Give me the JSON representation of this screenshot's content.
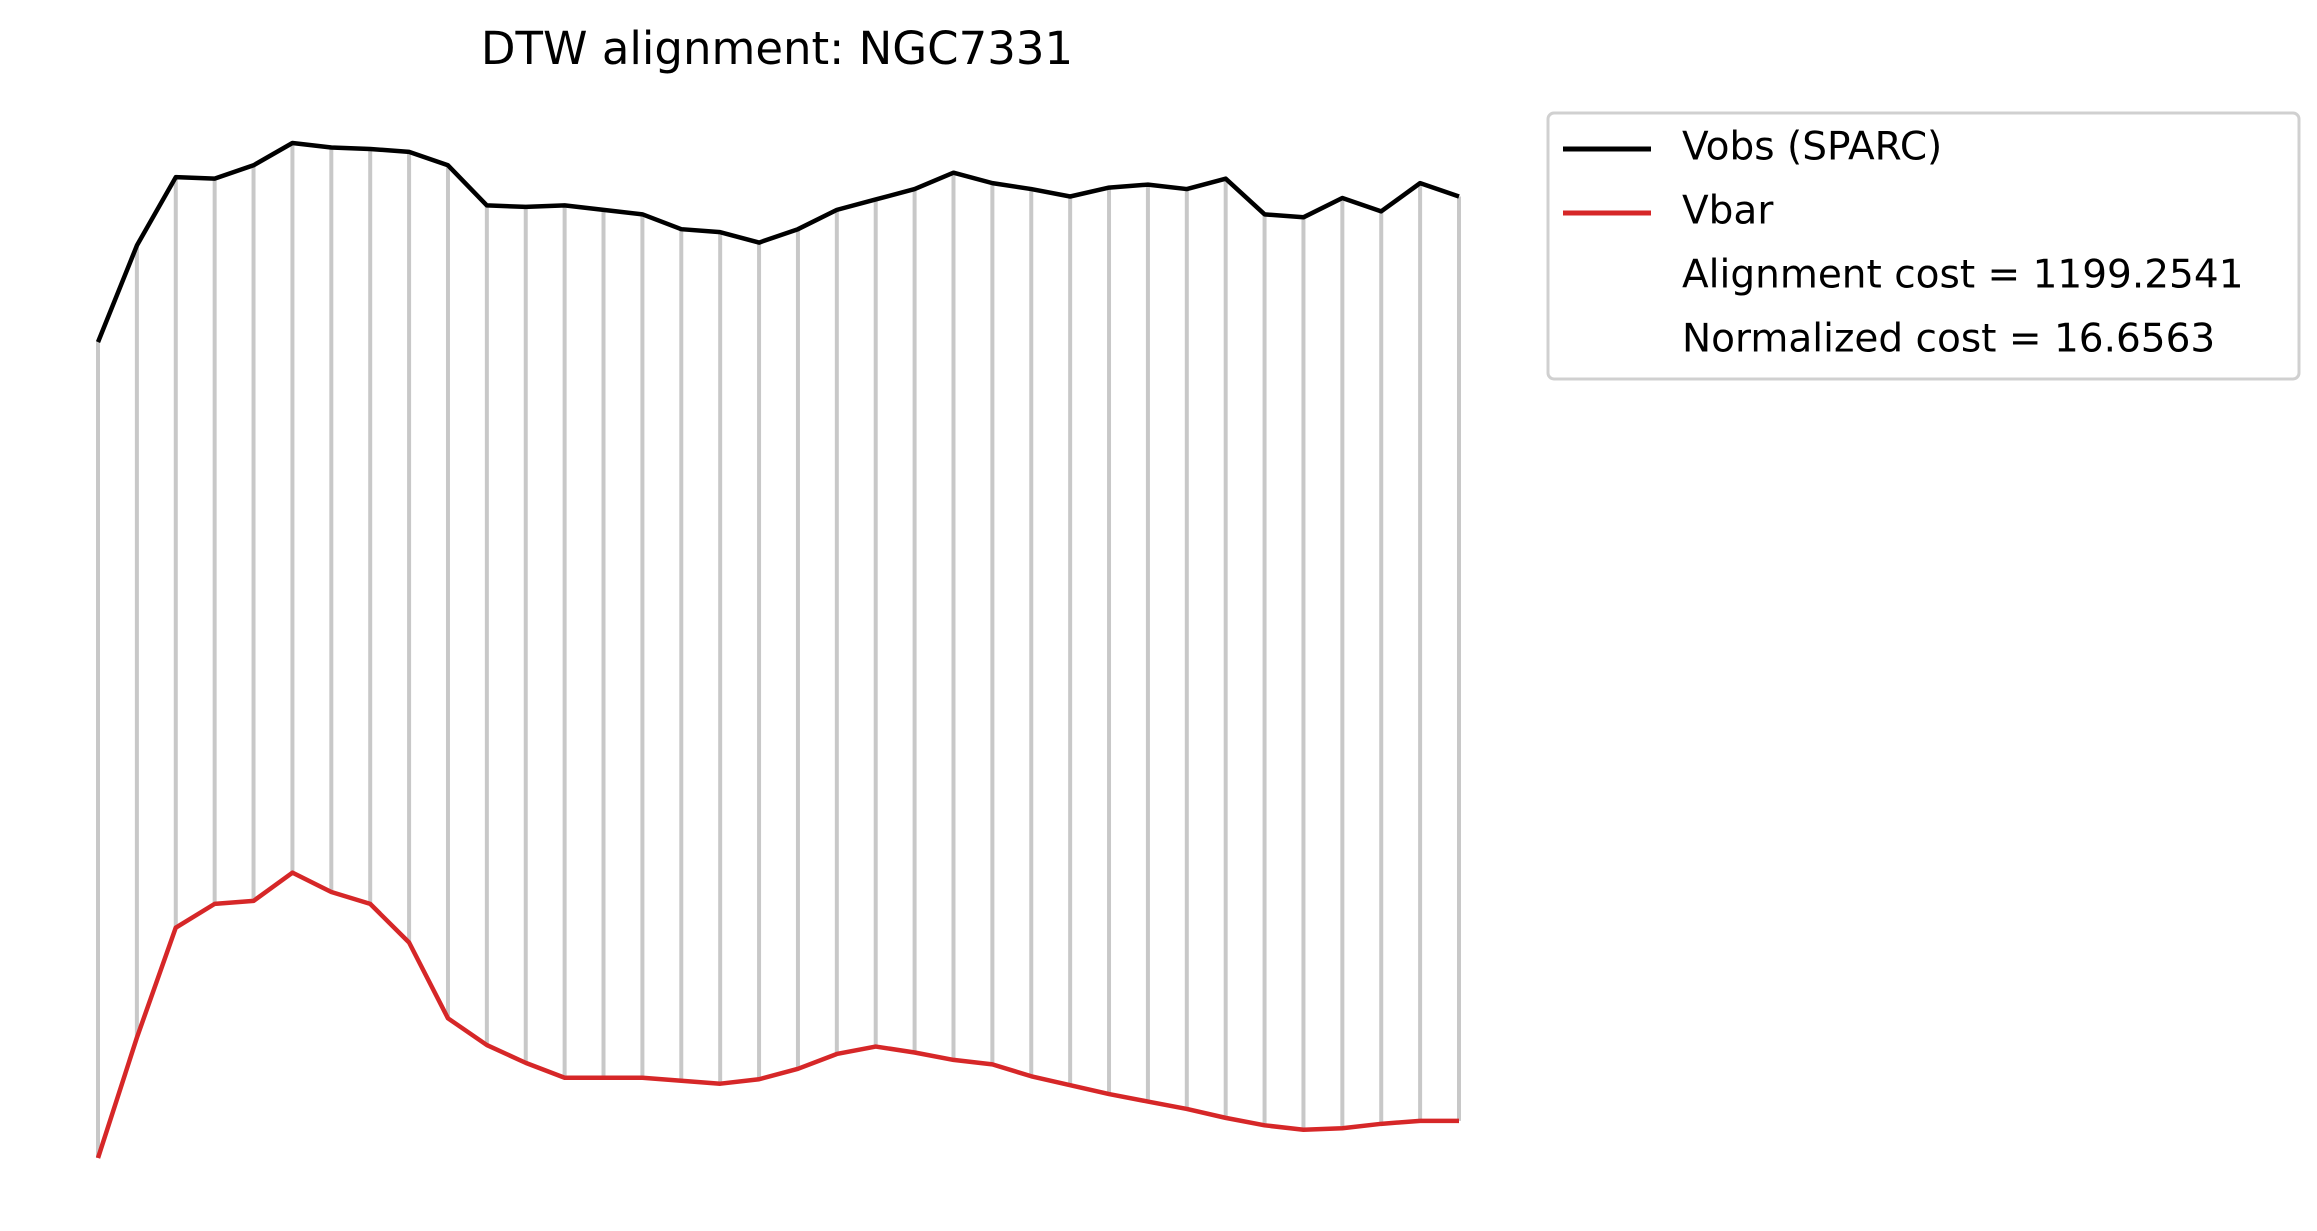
{
  "chart_data": {
    "type": "line",
    "title": "DTW alignment: NGC7331",
    "series": [
      {
        "name": "Vobs (SPARC)",
        "color": "#000000",
        "values": [
          570,
          635,
          681,
          680,
          689,
          704,
          701,
          700,
          698,
          689,
          662,
          661,
          662,
          659,
          656,
          646,
          644,
          637,
          646,
          659,
          666,
          673,
          684,
          677,
          673,
          668,
          674,
          676,
          673,
          680,
          656,
          654,
          667,
          658,
          677,
          668
        ]
      },
      {
        "name": "Vbar",
        "color": "#d62728",
        "values": [
          21,
          102,
          176,
          192,
          194,
          213,
          200,
          192,
          166,
          115,
          97,
          85,
          75,
          75,
          75,
          73,
          71,
          74,
          81,
          91,
          96,
          92,
          87,
          84,
          76,
          70,
          64,
          59,
          54,
          48,
          43,
          40,
          41,
          44,
          46,
          46
        ]
      }
    ],
    "alignment_color": "#c8c8c8",
    "annotations": [
      "Alignment cost = 1199.2541",
      "Normalized cost = 16.6563"
    ],
    "ylim": [
      21,
      704
    ],
    "legend": "outside upper right"
  }
}
